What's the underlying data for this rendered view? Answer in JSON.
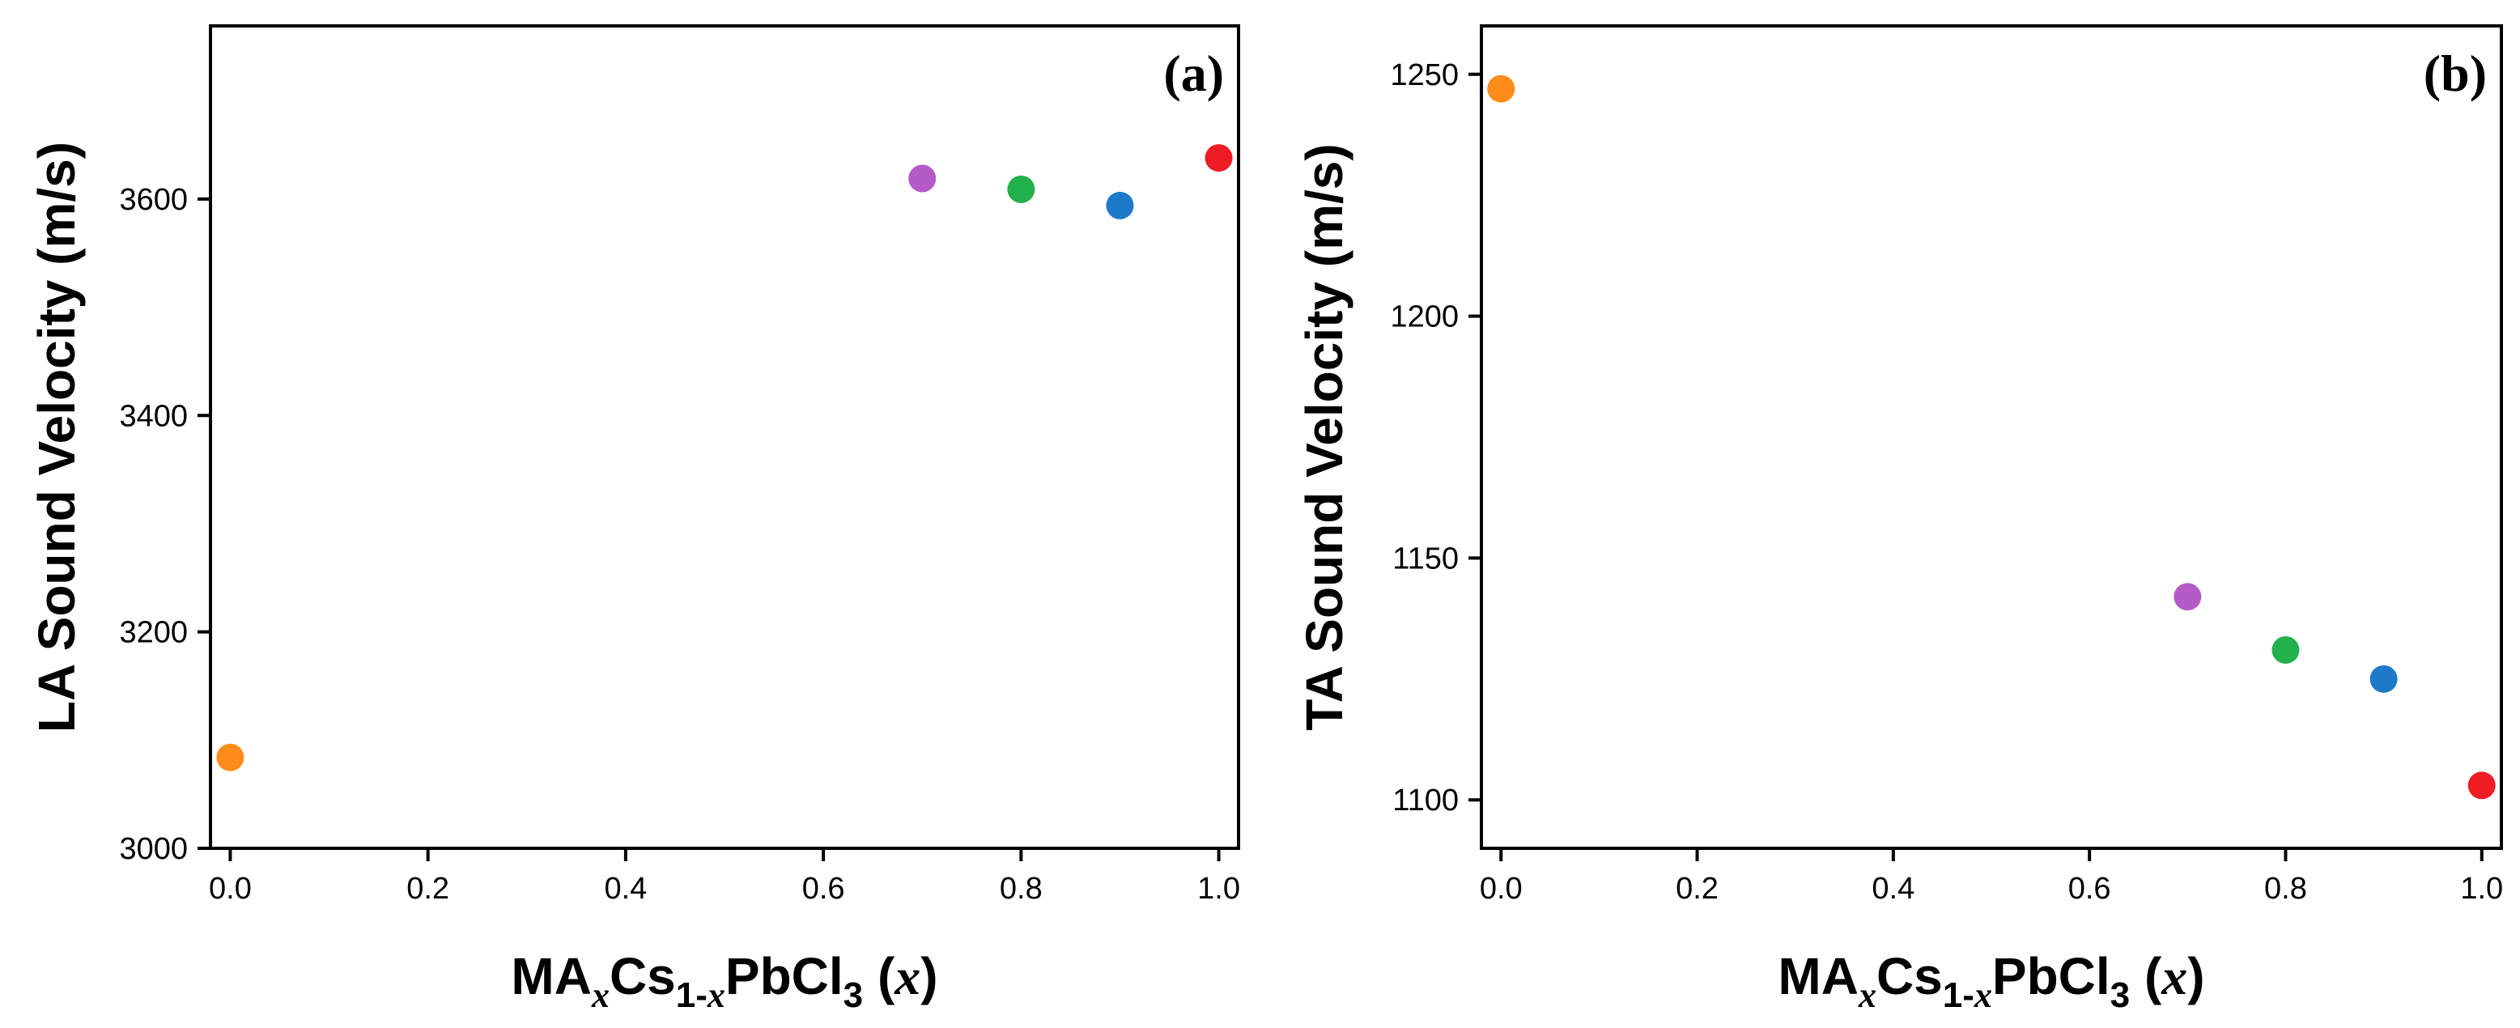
{
  "chart_data": [
    {
      "panel_label": "(a)",
      "type": "scatter",
      "ylabel": "LA Sound Velocity (m/s)",
      "xlabel": {
        "prefix": "MA",
        "sub_x": "x",
        "middle": "Cs",
        "sub_range": "1-",
        "sub_x2": "x",
        "suffix": "PbCl",
        "sub_3": "3",
        "paren_open": " (",
        "var": "x",
        "paren_close": ")"
      },
      "xlim": [
        -0.02,
        1.02
      ],
      "ylim": [
        3000,
        3760
      ],
      "xticks": [
        0.0,
        0.2,
        0.4,
        0.6,
        0.8,
        1.0
      ],
      "xtick_labels": [
        "0.0",
        "0.2",
        "0.4",
        "0.6",
        "0.8",
        "1.0"
      ],
      "yticks": [
        3000,
        3200,
        3400,
        3600
      ],
      "ytick_labels": [
        "3000",
        "3200",
        "3400",
        "3600"
      ],
      "points": [
        {
          "x": 0.0,
          "y": 3084,
          "color": "#ff8c1a"
        },
        {
          "x": 0.7,
          "y": 3619,
          "color": "#b55bc8"
        },
        {
          "x": 0.8,
          "y": 3609,
          "color": "#22b14c"
        },
        {
          "x": 0.9,
          "y": 3594,
          "color": "#1e7ac8"
        },
        {
          "x": 1.0,
          "y": 3638,
          "color": "#ee1c24"
        }
      ]
    },
    {
      "panel_label": "(b)",
      "type": "scatter",
      "ylabel": "TA Sound Velocity (m/s)",
      "xlabel": {
        "prefix": "MA",
        "sub_x": "x",
        "middle": "Cs",
        "sub_range": "1-",
        "sub_x2": "x",
        "suffix": "PbCl",
        "sub_3": "3",
        "paren_open": " (",
        "var": "x",
        "paren_close": ")"
      },
      "xlim": [
        -0.02,
        1.02
      ],
      "ylim": [
        1090,
        1260
      ],
      "xticks": [
        0.0,
        0.2,
        0.4,
        0.6,
        0.8,
        1.0
      ],
      "xtick_labels": [
        "0.0",
        "0.2",
        "0.4",
        "0.6",
        "0.8",
        "1.0"
      ],
      "yticks": [
        1100,
        1150,
        1200,
        1250
      ],
      "ytick_labels": [
        "1100",
        "1150",
        "1200",
        "1250"
      ],
      "points": [
        {
          "x": 0.0,
          "y": 1247,
          "color": "#ff8c1a"
        },
        {
          "x": 0.7,
          "y": 1142,
          "color": "#b55bc8"
        },
        {
          "x": 0.8,
          "y": 1131,
          "color": "#22b14c"
        },
        {
          "x": 0.9,
          "y": 1125,
          "color": "#1e7ac8"
        },
        {
          "x": 1.0,
          "y": 1103,
          "color": "#ee1c24"
        }
      ]
    }
  ]
}
